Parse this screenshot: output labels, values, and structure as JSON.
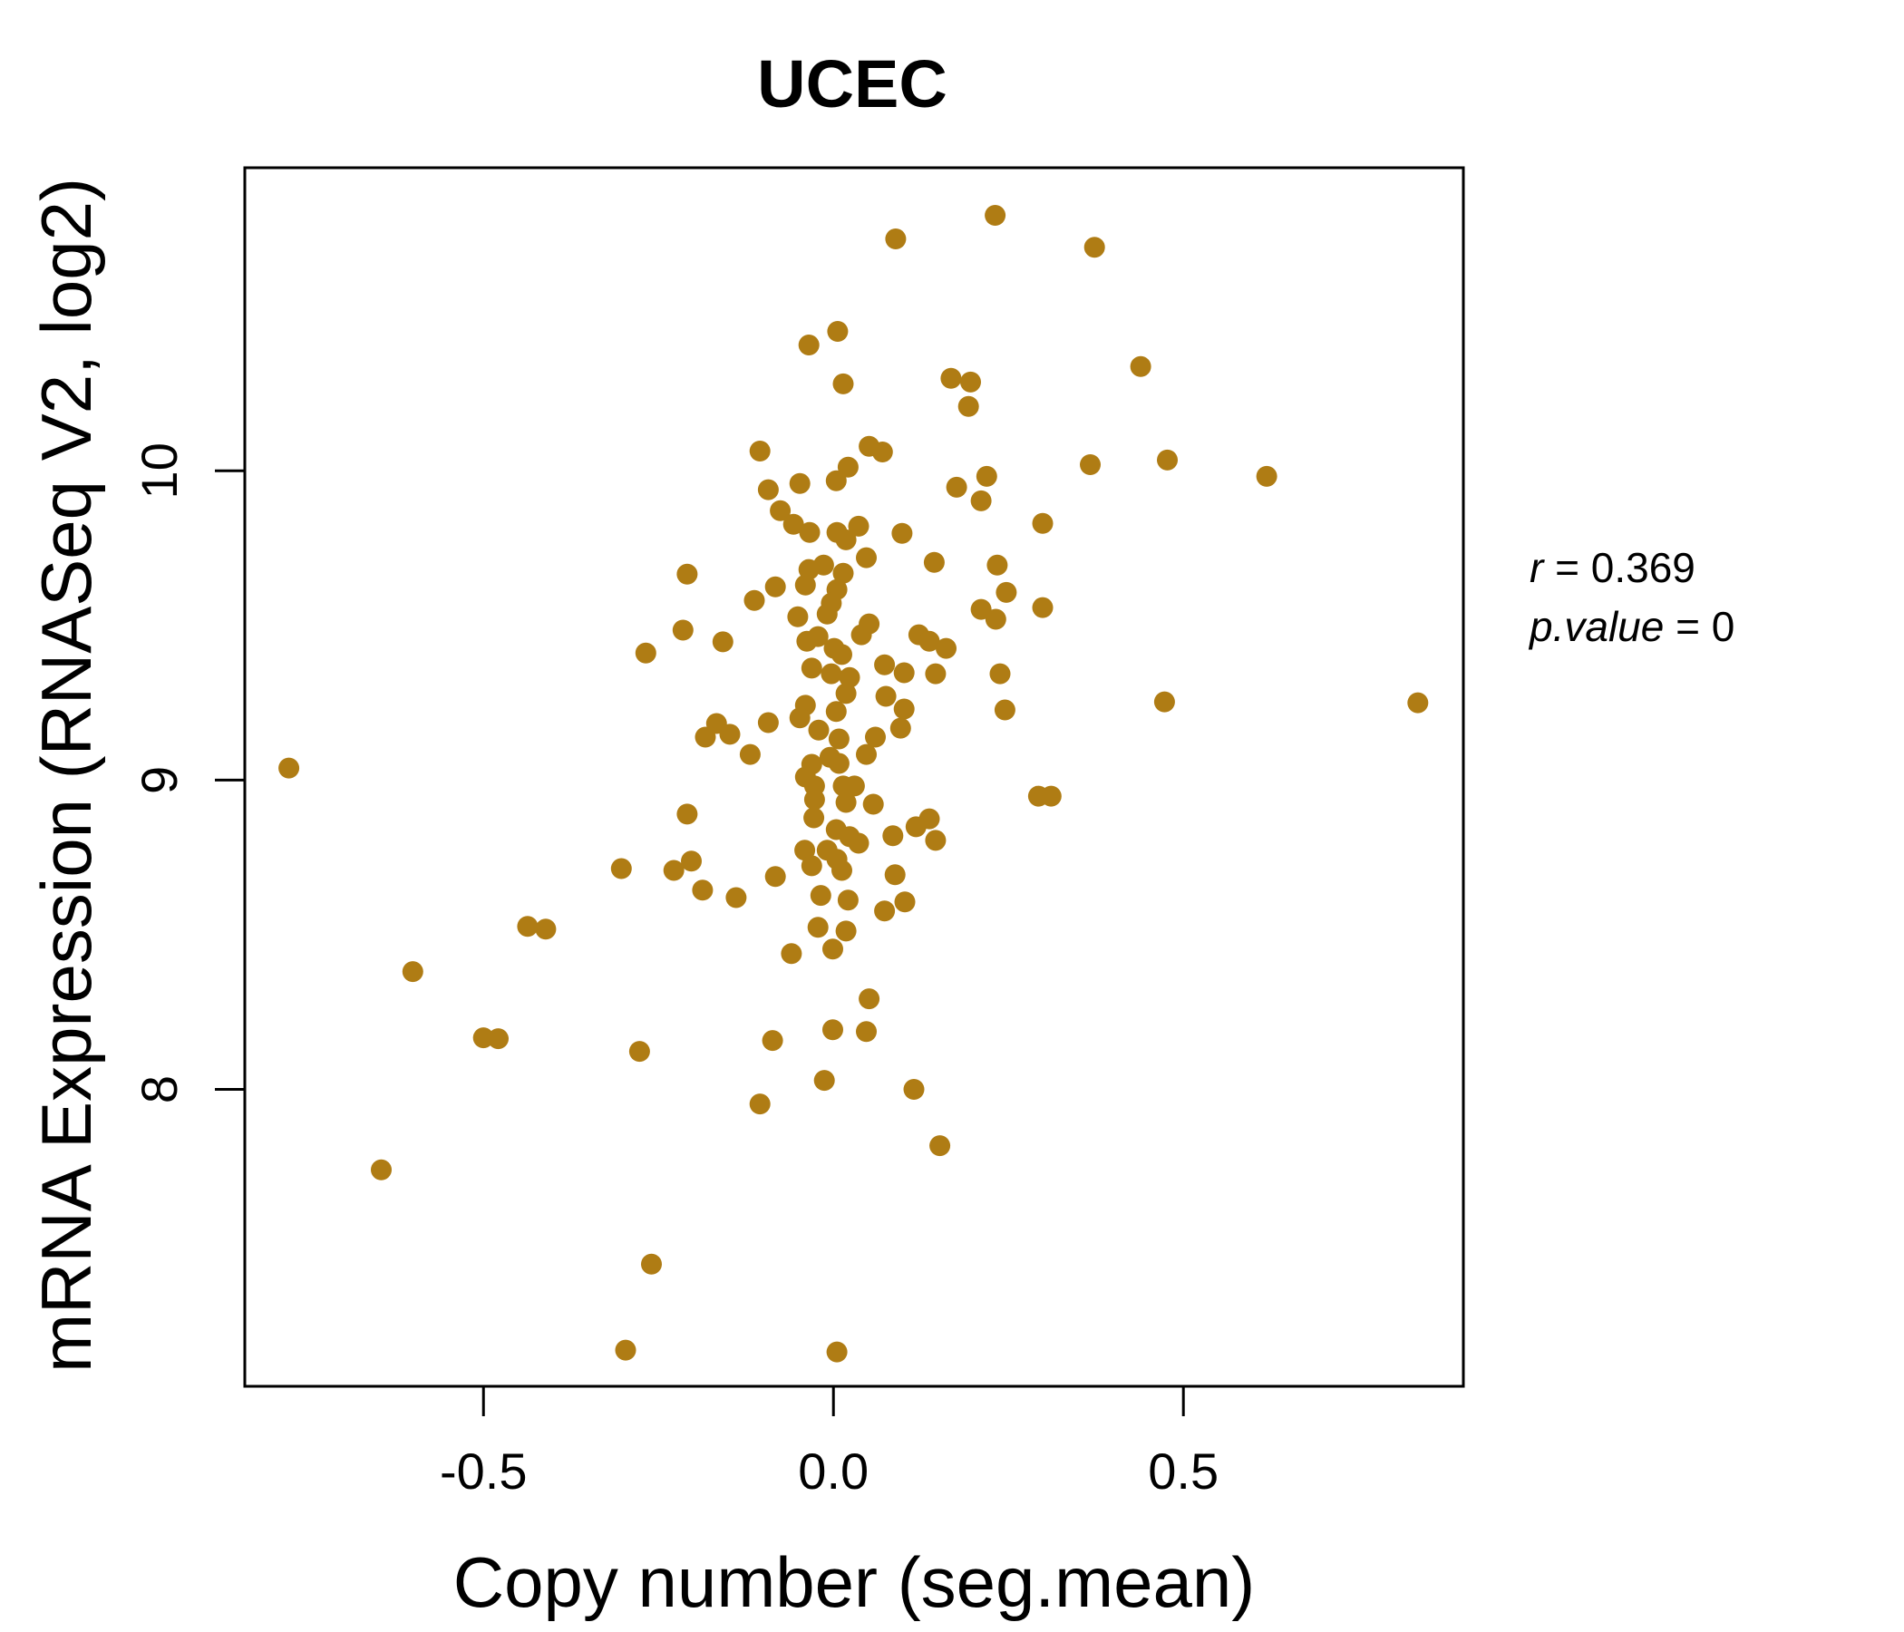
{
  "title": {
    "text": "UCEC",
    "color": "#AF7C14"
  },
  "axes": {
    "xlabel": "Copy number (seg.mean)",
    "ylabel": "mRNA Expression (RNASeq V2, log2)"
  },
  "annotation": {
    "line1_var": "r",
    "line1_rest": " = 0.369",
    "line2_var": "p.value",
    "line2_rest": " = 0"
  },
  "chart_data": {
    "type": "scatter",
    "title": "UCEC",
    "xlabel": "Copy number (seg.mean)",
    "ylabel": "mRNA Expression (RNASeq V2, log2)",
    "legend": "none",
    "grid": false,
    "correlation_r": 0.369,
    "p_value": 0,
    "point_color": "#AF7C14",
    "axis_color": "#000000",
    "xlim": [
      -0.841,
      0.9
    ],
    "ylim": [
      7.04,
      10.98
    ],
    "x_ticks": [
      -0.5,
      0.0,
      0.5
    ],
    "x_tick_labels": [
      "-0.5",
      "0.0",
      "0.5"
    ],
    "y_ticks": [
      8,
      9,
      10
    ],
    "y_tick_labels": [
      "8",
      "9",
      "10"
    ],
    "points": [
      [
        -0.105,
        10.064
      ],
      [
        0.051,
        10.079
      ],
      [
        0.07,
        10.061
      ],
      [
        0.021,
        10.012
      ],
      [
        0.004,
        9.968
      ],
      [
        -0.048,
        9.959
      ],
      [
        -0.093,
        9.939
      ],
      [
        0.176,
        9.947
      ],
      [
        0.219,
        9.982
      ],
      [
        0.211,
        9.903
      ],
      [
        -0.076,
        9.871
      ],
      [
        -0.057,
        9.827
      ],
      [
        -0.034,
        9.801
      ],
      [
        0.299,
        9.83
      ],
      [
        0.005,
        9.801
      ],
      [
        0.036,
        9.821
      ],
      [
        0.018,
        9.777
      ],
      [
        0.098,
        9.798
      ],
      [
        0.047,
        9.719
      ],
      [
        0.144,
        9.704
      ],
      [
        0.234,
        9.695
      ],
      [
        -0.014,
        9.695
      ],
      [
        -0.035,
        9.681
      ],
      [
        0.014,
        9.669
      ],
      [
        -0.04,
        9.631
      ],
      [
        -0.083,
        9.625
      ],
      [
        0.005,
        9.616
      ],
      [
        0.247,
        9.607
      ],
      [
        -0.003,
        9.572
      ],
      [
        0.299,
        9.558
      ],
      [
        0.211,
        9.552
      ],
      [
        -0.051,
        9.528
      ],
      [
        0.232,
        9.52
      ],
      [
        -0.009,
        9.537
      ],
      [
        0.051,
        9.505
      ],
      [
        0.04,
        9.47
      ],
      [
        -0.038,
        9.449
      ],
      [
        -0.022,
        9.464
      ],
      [
        0.122,
        9.47
      ],
      [
        0.137,
        9.449
      ],
      [
        0.161,
        9.426
      ],
      [
        0.001,
        9.426
      ],
      [
        0.012,
        9.406
      ],
      [
        0.073,
        9.373
      ],
      [
        0.101,
        9.347
      ],
      [
        0.146,
        9.344
      ],
      [
        -0.003,
        9.344
      ],
      [
        0.023,
        9.332
      ],
      [
        0.238,
        9.344
      ],
      [
        -0.031,
        9.362
      ],
      [
        -0.093,
        9.186
      ],
      [
        -0.04,
        9.242
      ],
      [
        -0.048,
        9.201
      ],
      [
        0.018,
        9.28
      ],
      [
        0.004,
        9.222
      ],
      [
        0.075,
        9.271
      ],
      [
        0.101,
        9.23
      ],
      [
        0.245,
        9.227
      ],
      [
        0.008,
        9.133
      ],
      [
        -0.021,
        9.162
      ],
      [
        0.096,
        9.168
      ],
      [
        0.06,
        9.139
      ],
      [
        0.047,
        9.083
      ],
      [
        -0.005,
        9.074
      ],
      [
        -0.031,
        9.051
      ],
      [
        0.008,
        9.054
      ],
      [
        -0.04,
        9.01
      ],
      [
        -0.027,
        8.981
      ],
      [
        0.014,
        8.981
      ],
      [
        0.03,
        8.981
      ],
      [
        -0.027,
        8.937
      ],
      [
        0.018,
        8.928
      ],
      [
        0.293,
        8.948
      ],
      [
        0.311,
        8.948
      ],
      [
        0.057,
        8.922
      ],
      [
        -0.028,
        8.878
      ],
      [
        0.137,
        8.875
      ],
      [
        0.118,
        8.849
      ],
      [
        0.004,
        8.84
      ],
      [
        0.023,
        8.817
      ],
      [
        0.085,
        8.82
      ],
      [
        0.146,
        8.805
      ],
      [
        -0.041,
        8.773
      ],
      [
        -0.009,
        8.773
      ],
      [
        0.036,
        8.796
      ],
      [
        0.005,
        8.744
      ],
      [
        -0.031,
        8.723
      ],
      [
        0.012,
        8.708
      ],
      [
        -0.083,
        8.688
      ],
      [
        0.088,
        8.694
      ],
      [
        -0.018,
        8.627
      ],
      [
        0.021,
        8.612
      ],
      [
        0.073,
        8.577
      ],
      [
        0.102,
        8.606
      ],
      [
        -0.022,
        8.524
      ],
      [
        0.018,
        8.512
      ],
      [
        -0.06,
        8.439
      ],
      [
        -0.001,
        8.454
      ],
      [
        0.051,
        8.293
      ],
      [
        -0.001,
        8.193
      ],
      [
        0.047,
        8.187
      ],
      [
        -0.087,
        8.158
      ],
      [
        -0.013,
        8.029
      ],
      [
        0.115,
        8.0
      ],
      [
        -0.105,
        7.953
      ],
      [
        0.152,
        7.818
      ],
      [
        -0.209,
        9.666
      ],
      [
        -0.113,
        9.581
      ],
      [
        -0.215,
        9.485
      ],
      [
        -0.158,
        9.447
      ],
      [
        -0.268,
        9.411
      ],
      [
        -0.167,
        9.183
      ],
      [
        -0.183,
        9.139
      ],
      [
        -0.148,
        9.148
      ],
      [
        -0.119,
        9.083
      ],
      [
        -0.209,
        8.89
      ],
      [
        -0.303,
        8.714
      ],
      [
        -0.228,
        8.708
      ],
      [
        -0.203,
        8.738
      ],
      [
        -0.187,
        8.644
      ],
      [
        -0.139,
        8.62
      ],
      [
        -0.437,
        8.527
      ],
      [
        -0.411,
        8.518
      ],
      [
        -0.035,
        10.407
      ],
      [
        0.006,
        10.451
      ],
      [
        0.014,
        10.281
      ],
      [
        0.168,
        10.299
      ],
      [
        0.196,
        10.287
      ],
      [
        0.193,
        10.208
      ],
      [
        0.439,
        10.337
      ],
      [
        0.367,
        10.02
      ],
      [
        0.477,
        10.035
      ],
      [
        0.089,
        10.75
      ],
      [
        0.231,
        10.826
      ],
      [
        0.373,
        10.723
      ],
      [
        0.619,
        9.982
      ],
      [
        0.835,
        9.25
      ],
      [
        0.473,
        9.253
      ],
      [
        -0.778,
        9.039
      ],
      [
        -0.601,
        8.381
      ],
      [
        -0.5,
        8.167
      ],
      [
        -0.479,
        8.164
      ],
      [
        -0.646,
        7.74
      ],
      [
        -0.277,
        8.123
      ],
      [
        -0.26,
        7.435
      ],
      [
        -0.297,
        7.157
      ],
      [
        0.005,
        7.151
      ]
    ]
  }
}
